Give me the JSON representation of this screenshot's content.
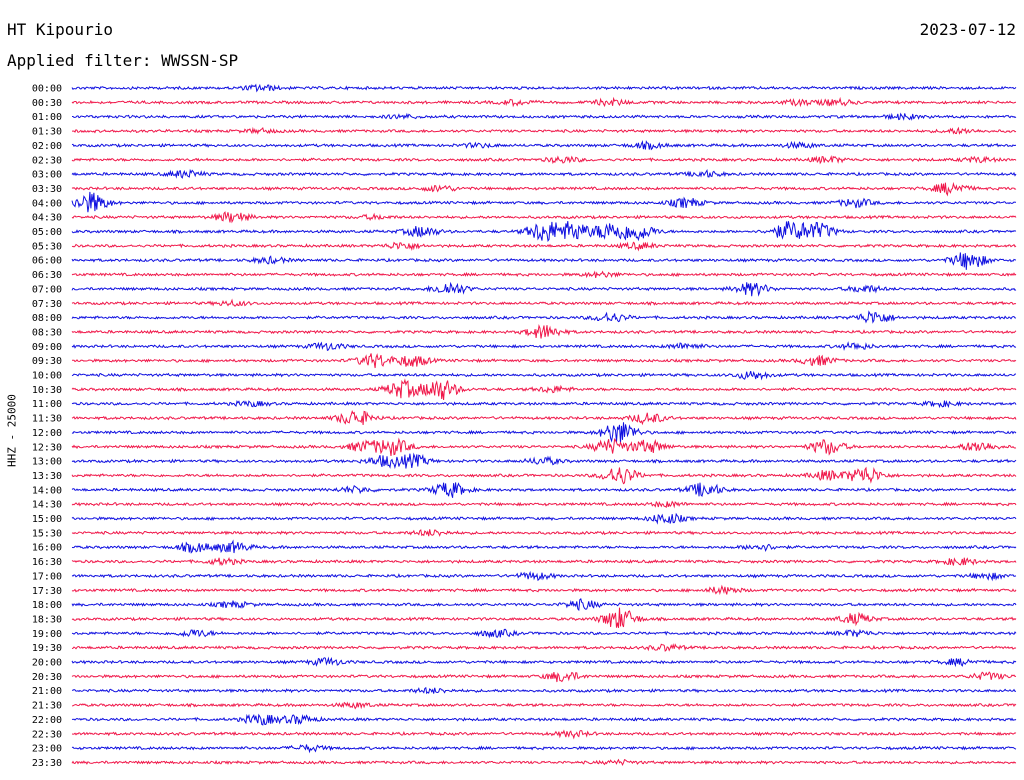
{
  "header": {
    "station": "HT Kipourio",
    "date": "2023-07-12",
    "filter": "Applied filter: WWSSN-SP"
  },
  "colors": {
    "blue": "#1010e0",
    "red": "#f0184a"
  },
  "chart_data": {
    "type": "line",
    "title": "HT Kipourio",
    "ylabel": "HHZ - 25000",
    "rows": [
      {
        "time": "00:00",
        "color": "blue",
        "events": [
          [
            0.2,
            0.5
          ]
        ]
      },
      {
        "time": "00:30",
        "color": "red",
        "events": [
          [
            0.47,
            0.4
          ],
          [
            0.57,
            0.5
          ],
          [
            0.77,
            0.4
          ],
          [
            0.81,
            0.5
          ]
        ]
      },
      {
        "time": "01:00",
        "color": "blue",
        "events": [
          [
            0.35,
            0.3
          ],
          [
            0.88,
            0.4
          ]
        ]
      },
      {
        "time": "01:30",
        "color": "red",
        "events": [
          [
            0.2,
            0.3
          ],
          [
            0.94,
            0.4
          ]
        ]
      },
      {
        "time": "02:00",
        "color": "blue",
        "events": [
          [
            0.43,
            0.3
          ],
          [
            0.61,
            0.5
          ],
          [
            0.77,
            0.4
          ]
        ]
      },
      {
        "time": "02:30",
        "color": "red",
        "events": [
          [
            0.52,
            0.5
          ],
          [
            0.8,
            0.5
          ],
          [
            0.96,
            0.4
          ]
        ]
      },
      {
        "time": "03:00",
        "color": "blue",
        "events": [
          [
            0.12,
            0.6
          ],
          [
            0.67,
            0.5
          ]
        ]
      },
      {
        "time": "03:30",
        "color": "red",
        "events": [
          [
            0.39,
            0.5
          ],
          [
            0.93,
            1.0
          ]
        ]
      },
      {
        "time": "04:00",
        "color": "blue",
        "events": [
          [
            0.02,
            1.8
          ],
          [
            0.65,
            0.8
          ],
          [
            0.83,
            0.7
          ]
        ]
      },
      {
        "time": "04:30",
        "color": "red",
        "events": [
          [
            0.17,
            0.9
          ],
          [
            0.32,
            0.3
          ]
        ]
      },
      {
        "time": "05:00",
        "color": "blue",
        "events": [
          [
            0.37,
            0.9
          ],
          [
            0.5,
            1.8
          ],
          [
            0.53,
            1.6
          ],
          [
            0.57,
            1.6
          ],
          [
            0.6,
            1.4
          ],
          [
            0.76,
            1.6
          ],
          [
            0.79,
            1.4
          ]
        ]
      },
      {
        "time": "05:30",
        "color": "red",
        "events": [
          [
            0.35,
            0.6
          ],
          [
            0.6,
            0.5
          ]
        ]
      },
      {
        "time": "06:00",
        "color": "blue",
        "events": [
          [
            0.21,
            0.5
          ],
          [
            0.95,
            1.6
          ]
        ]
      },
      {
        "time": "06:30",
        "color": "red",
        "events": [
          [
            0.56,
            0.4
          ]
        ]
      },
      {
        "time": "07:00",
        "color": "blue",
        "events": [
          [
            0.4,
            1.1
          ],
          [
            0.72,
            1.1
          ],
          [
            0.84,
            0.6
          ]
        ]
      },
      {
        "time": "07:30",
        "color": "red",
        "events": [
          [
            0.17,
            0.4
          ]
        ]
      },
      {
        "time": "08:00",
        "color": "blue",
        "events": [
          [
            0.57,
            0.8
          ],
          [
            0.85,
            1.1
          ]
        ]
      },
      {
        "time": "08:30",
        "color": "red",
        "events": [
          [
            0.5,
            1.2
          ]
        ]
      },
      {
        "time": "09:00",
        "color": "blue",
        "events": [
          [
            0.27,
            0.6
          ],
          [
            0.65,
            0.5
          ],
          [
            0.83,
            0.5
          ]
        ]
      },
      {
        "time": "09:30",
        "color": "red",
        "events": [
          [
            0.32,
            1.2
          ],
          [
            0.36,
            1.0
          ],
          [
            0.79,
            0.8
          ]
        ]
      },
      {
        "time": "10:00",
        "color": "blue",
        "events": [
          [
            0.72,
            0.7
          ]
        ]
      },
      {
        "time": "10:30",
        "color": "red",
        "events": [
          [
            0.35,
            1.5
          ],
          [
            0.39,
            1.9
          ],
          [
            0.51,
            0.5
          ]
        ]
      },
      {
        "time": "11:00",
        "color": "blue",
        "events": [
          [
            0.19,
            0.4
          ],
          [
            0.92,
            0.4
          ]
        ]
      },
      {
        "time": "11:30",
        "color": "red",
        "events": [
          [
            0.3,
            1.4
          ],
          [
            0.61,
            0.9
          ]
        ]
      },
      {
        "time": "12:00",
        "color": "blue",
        "events": [
          [
            0.58,
            2.0
          ]
        ]
      },
      {
        "time": "12:30",
        "color": "red",
        "events": [
          [
            0.31,
            0.9
          ],
          [
            0.34,
            1.4
          ],
          [
            0.57,
            1.3
          ],
          [
            0.61,
            1.1
          ],
          [
            0.8,
            1.3
          ],
          [
            0.96,
            0.9
          ]
        ]
      },
      {
        "time": "13:00",
        "color": "blue",
        "events": [
          [
            0.33,
            0.9
          ],
          [
            0.36,
            1.1
          ],
          [
            0.5,
            0.6
          ]
        ]
      },
      {
        "time": "13:30",
        "color": "red",
        "events": [
          [
            0.58,
            1.6
          ],
          [
            0.8,
            0.8
          ],
          [
            0.84,
            1.5
          ]
        ]
      },
      {
        "time": "14:00",
        "color": "blue",
        "events": [
          [
            0.4,
            1.3
          ],
          [
            0.67,
            1.2
          ],
          [
            0.3,
            0.5
          ]
        ]
      },
      {
        "time": "14:30",
        "color": "red",
        "events": [
          [
            0.63,
            0.4
          ]
        ]
      },
      {
        "time": "15:00",
        "color": "blue",
        "events": [
          [
            0.63,
            0.9
          ]
        ]
      },
      {
        "time": "15:30",
        "color": "red",
        "events": [
          [
            0.38,
            0.5
          ]
        ]
      },
      {
        "time": "16:00",
        "color": "blue",
        "events": [
          [
            0.13,
            0.8
          ],
          [
            0.17,
            0.9
          ],
          [
            0.73,
            0.5
          ]
        ]
      },
      {
        "time": "16:30",
        "color": "red",
        "events": [
          [
            0.16,
            0.5
          ],
          [
            0.94,
            0.6
          ]
        ]
      },
      {
        "time": "17:00",
        "color": "blue",
        "events": [
          [
            0.49,
            0.6
          ],
          [
            0.97,
            0.5
          ]
        ]
      },
      {
        "time": "17:30",
        "color": "red",
        "events": [
          [
            0.69,
            0.6
          ]
        ]
      },
      {
        "time": "18:00",
        "color": "blue",
        "events": [
          [
            0.17,
            0.5
          ],
          [
            0.54,
            0.8
          ]
        ]
      },
      {
        "time": "18:30",
        "color": "red",
        "events": [
          [
            0.58,
            1.9
          ],
          [
            0.83,
            0.9
          ]
        ]
      },
      {
        "time": "19:00",
        "color": "blue",
        "events": [
          [
            0.13,
            0.6
          ],
          [
            0.45,
            0.6
          ],
          [
            0.83,
            0.5
          ]
        ]
      },
      {
        "time": "19:30",
        "color": "red",
        "events": [
          [
            0.63,
            0.5
          ]
        ]
      },
      {
        "time": "20:00",
        "color": "blue",
        "events": [
          [
            0.27,
            0.6
          ],
          [
            0.94,
            0.5
          ]
        ]
      },
      {
        "time": "20:30",
        "color": "red",
        "events": [
          [
            0.52,
            0.9
          ],
          [
            0.97,
            0.6
          ]
        ]
      },
      {
        "time": "21:00",
        "color": "blue",
        "events": [
          [
            0.38,
            0.4
          ]
        ]
      },
      {
        "time": "21:30",
        "color": "red",
        "events": [
          [
            0.3,
            0.4
          ]
        ]
      },
      {
        "time": "22:00",
        "color": "blue",
        "events": [
          [
            0.2,
            0.9
          ],
          [
            0.24,
            0.7
          ]
        ]
      },
      {
        "time": "22:30",
        "color": "red",
        "events": [
          [
            0.53,
            0.5
          ]
        ]
      },
      {
        "time": "23:00",
        "color": "blue",
        "events": [
          [
            0.25,
            0.5
          ]
        ]
      },
      {
        "time": "23:30",
        "color": "red",
        "events": [
          [
            0.58,
            0.3
          ]
        ]
      }
    ]
  }
}
